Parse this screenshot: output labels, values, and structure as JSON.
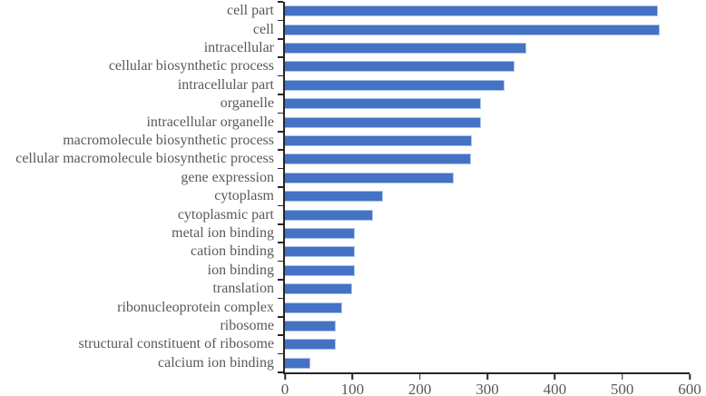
{
  "chart_data": {
    "type": "bar",
    "orientation": "horizontal",
    "title": "",
    "xlabel": "",
    "ylabel": "",
    "categories": [
      "cell part",
      "cell",
      "intracellular",
      "cellular biosynthetic process",
      "intracellular part",
      "organelle",
      "intracellular organelle",
      "macromolecule biosynthetic process",
      "cellular macromolecule biosynthetic process",
      "gene expression",
      "cytoplasm",
      "cytoplasmic part",
      "metal ion binding",
      "cation binding",
      "ion binding",
      "translation",
      "ribonucleoprotein complex",
      "ribosome",
      "structural constituent of ribosome",
      "calcium ion binding"
    ],
    "values": [
      553,
      555,
      358,
      340,
      326,
      290,
      291,
      277,
      276,
      250,
      145,
      130,
      103,
      103,
      103,
      100,
      85,
      76,
      76,
      38
    ],
    "xlim": [
      0,
      600
    ],
    "x_ticks": [
      0,
      100,
      200,
      300,
      400,
      500,
      600
    ],
    "grid": false,
    "legend": false,
    "colors": {
      "bar_fill": "#4472C4",
      "bar_border": "#A9C3E8",
      "axis": "#262626",
      "text": "#595959"
    }
  }
}
